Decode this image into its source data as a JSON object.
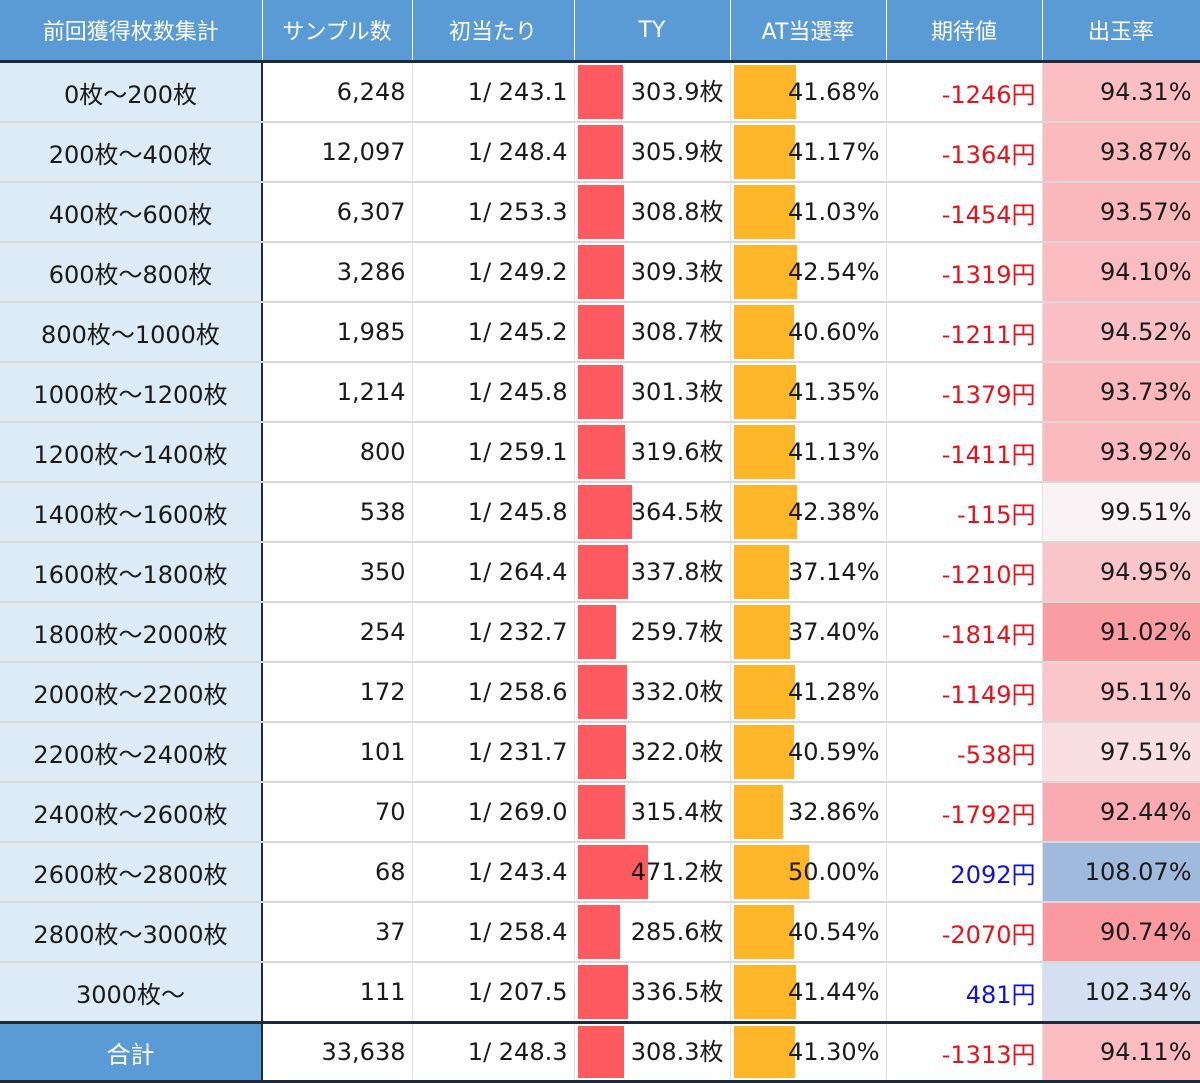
{
  "headers": [
    "前回獲得枚数集計",
    "サンプル数",
    "初当たり",
    "TY",
    "AT当選率",
    "期待値",
    "出玉率"
  ],
  "colors": {
    "header_bg": "#5b9bd5",
    "label_bg": "#ddebf7",
    "ty_bar": "#ff5a5f",
    "at_bar": "#ffb628",
    "negative_value": "#e8101a",
    "positive_value": "#1111dd"
  },
  "rows": [
    {
      "range": "0枚～200枚",
      "samples": "6,248",
      "first_hit": "1/ 243.1",
      "ty": "303.9枚",
      "ty_value": 303.9,
      "at_rate": "41.68%",
      "at_value": 41.68,
      "ev": "-1246円",
      "payout": "94.31%",
      "payout_value": 94.31
    },
    {
      "range": "200枚～400枚",
      "samples": "12,097",
      "first_hit": "1/ 248.4",
      "ty": "305.9枚",
      "ty_value": 305.9,
      "at_rate": "41.17%",
      "at_value": 41.17,
      "ev": "-1364円",
      "payout": "93.87%",
      "payout_value": 93.87
    },
    {
      "range": "400枚～600枚",
      "samples": "6,307",
      "first_hit": "1/ 253.3",
      "ty": "308.8枚",
      "ty_value": 308.8,
      "at_rate": "41.03%",
      "at_value": 41.03,
      "ev": "-1454円",
      "payout": "93.57%",
      "payout_value": 93.57
    },
    {
      "range": "600枚～800枚",
      "samples": "3,286",
      "first_hit": "1/ 249.2",
      "ty": "309.3枚",
      "ty_value": 309.3,
      "at_rate": "42.54%",
      "at_value": 42.54,
      "ev": "-1319円",
      "payout": "94.10%",
      "payout_value": 94.1
    },
    {
      "range": "800枚～1000枚",
      "samples": "1,985",
      "first_hit": "1/ 245.2",
      "ty": "308.7枚",
      "ty_value": 308.7,
      "at_rate": "40.60%",
      "at_value": 40.6,
      "ev": "-1211円",
      "payout": "94.52%",
      "payout_value": 94.52
    },
    {
      "range": "1000枚～1200枚",
      "samples": "1,214",
      "first_hit": "1/ 245.8",
      "ty": "301.3枚",
      "ty_value": 301.3,
      "at_rate": "41.35%",
      "at_value": 41.35,
      "ev": "-1379円",
      "payout": "93.73%",
      "payout_value": 93.73
    },
    {
      "range": "1200枚～1400枚",
      "samples": "800",
      "first_hit": "1/ 259.1",
      "ty": "319.6枚",
      "ty_value": 319.6,
      "at_rate": "41.13%",
      "at_value": 41.13,
      "ev": "-1411円",
      "payout": "93.92%",
      "payout_value": 93.92
    },
    {
      "range": "1400枚～1600枚",
      "samples": "538",
      "first_hit": "1/ 245.8",
      "ty": "364.5枚",
      "ty_value": 364.5,
      "at_rate": "42.38%",
      "at_value": 42.38,
      "ev": "-115円",
      "payout": "99.51%",
      "payout_value": 99.51
    },
    {
      "range": "1600枚～1800枚",
      "samples": "350",
      "first_hit": "1/ 264.4",
      "ty": "337.8枚",
      "ty_value": 337.8,
      "at_rate": "37.14%",
      "at_value": 37.14,
      "ev": "-1210円",
      "payout": "94.95%",
      "payout_value": 94.95
    },
    {
      "range": "1800枚～2000枚",
      "samples": "254",
      "first_hit": "1/ 232.7",
      "ty": "259.7枚",
      "ty_value": 259.7,
      "at_rate": "37.40%",
      "at_value": 37.4,
      "ev": "-1814円",
      "payout": "91.02%",
      "payout_value": 91.02
    },
    {
      "range": "2000枚～2200枚",
      "samples": "172",
      "first_hit": "1/ 258.6",
      "ty": "332.0枚",
      "ty_value": 332.0,
      "at_rate": "41.28%",
      "at_value": 41.28,
      "ev": "-1149円",
      "payout": "95.11%",
      "payout_value": 95.11
    },
    {
      "range": "2200枚～2400枚",
      "samples": "101",
      "first_hit": "1/ 231.7",
      "ty": "322.0枚",
      "ty_value": 322.0,
      "at_rate": "40.59%",
      "at_value": 40.59,
      "ev": "-538円",
      "payout": "97.51%",
      "payout_value": 97.51
    },
    {
      "range": "2400枚～2600枚",
      "samples": "70",
      "first_hit": "1/ 269.0",
      "ty": "315.4枚",
      "ty_value": 315.4,
      "at_rate": "32.86%",
      "at_value": 32.86,
      "ev": "-1792円",
      "payout": "92.44%",
      "payout_value": 92.44
    },
    {
      "range": "2600枚～2800枚",
      "samples": "68",
      "first_hit": "1/ 243.4",
      "ty": "471.2枚",
      "ty_value": 471.2,
      "at_rate": "50.00%",
      "at_value": 50.0,
      "ev": "2092円",
      "payout": "108.07%",
      "payout_value": 108.07
    },
    {
      "range": "2800枚～3000枚",
      "samples": "37",
      "first_hit": "1/ 258.4",
      "ty": "285.6枚",
      "ty_value": 285.6,
      "at_rate": "40.54%",
      "at_value": 40.54,
      "ev": "-2070円",
      "payout": "90.74%",
      "payout_value": 90.74
    },
    {
      "range": "3000枚～",
      "samples": "111",
      "first_hit": "1/ 207.5",
      "ty": "336.5枚",
      "ty_value": 336.5,
      "at_rate": "41.44%",
      "at_value": 41.44,
      "ev": "481円",
      "payout": "102.34%",
      "payout_value": 102.34
    }
  ],
  "total": {
    "range": "合計",
    "samples": "33,638",
    "first_hit": "1/ 248.3",
    "ty": "308.3枚",
    "ty_value": 308.3,
    "at_rate": "41.30%",
    "at_value": 41.3,
    "ev": "-1313円",
    "payout": "94.11%",
    "payout_value": 94.11
  }
}
